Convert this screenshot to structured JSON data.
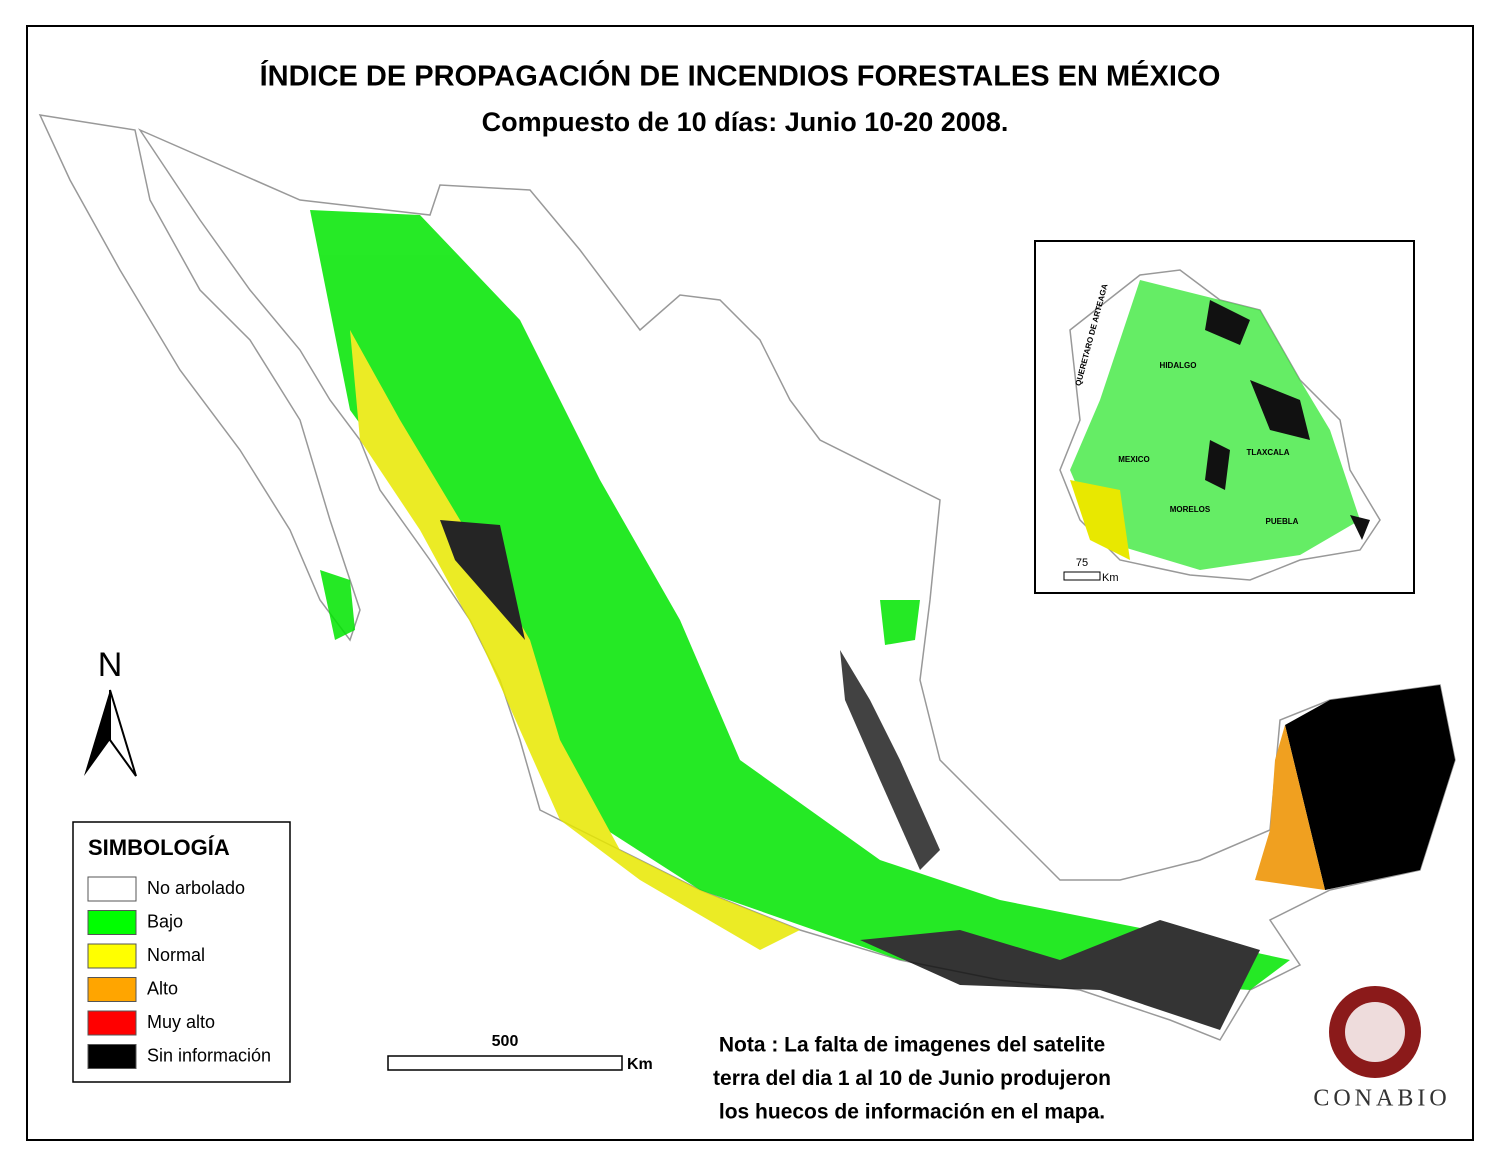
{
  "header": {
    "title": "ÍNDICE DE PROPAGACIÓN DE INCENDIOS FORESTALES EN MÉXICO",
    "subtitle": "Compuesto de 10 días: Junio 10-20 2008."
  },
  "legend": {
    "title": "SIMBOLOGÍA",
    "items": [
      {
        "label": "No arbolado",
        "color": "#ffffff"
      },
      {
        "label": "Bajo",
        "color": "#00ff00"
      },
      {
        "label": "Normal",
        "color": "#ffff00"
      },
      {
        "label": "Alto",
        "color": "#ffa500"
      },
      {
        "label": "Muy alto",
        "color": "#ff0000"
      },
      {
        "label": "Sin información",
        "color": "#000000"
      }
    ]
  },
  "north_arrow": {
    "label": "N"
  },
  "scale_bar": {
    "label": "500",
    "unit": "Km"
  },
  "inset": {
    "labels": [
      "QUERETARO DE ARTEAGA",
      "HIDALGO",
      "TLAXCALA",
      "MEXICO",
      "MORELOS",
      "PUEBLA"
    ],
    "scale_bar": {
      "label": "75",
      "unit": "Km"
    }
  },
  "note": {
    "lines": [
      "Nota : La falta de imagenes del satelite",
      "terra del dia 1 al 10 de Junio produjeron",
      "los huecos de información en el mapa."
    ]
  },
  "logo": {
    "text": "CONABIO"
  }
}
